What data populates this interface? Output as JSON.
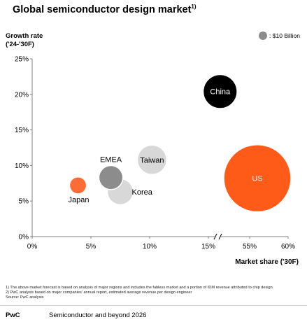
{
  "header": {
    "title": "Global semiconductor design market",
    "title_sup": "1)"
  },
  "legend": {
    "label": ": $10 Billion",
    "color": "#8c8c8c"
  },
  "chart_data": {
    "type": "scatter",
    "title": "Global semiconductor design market",
    "ylabel": "Growth rate ('24-'30F)",
    "xlabel": "Market share ('30F)",
    "ylim": [
      0,
      25
    ],
    "y_ticks": [
      "0%",
      "5%",
      "10%",
      "15%",
      "20%",
      "25%"
    ],
    "y_tick_values": [
      0,
      5,
      10,
      15,
      20,
      25
    ],
    "x_segments": [
      {
        "range": [
          0,
          15
        ],
        "ticks": [
          "0%",
          "5%",
          "10%",
          "15%"
        ],
        "tick_values": [
          0,
          5,
          10,
          15
        ]
      },
      {
        "range": [
          50,
          60
        ],
        "ticks": [
          "55%",
          "60%"
        ],
        "tick_values": [
          55,
          60
        ]
      }
    ],
    "axis_break": true,
    "grid": false,
    "bubble_size_note": "$10 Billion",
    "points": [
      {
        "label": "Japan",
        "x": 3.9,
        "y": 7.2,
        "size": 3,
        "color": "#fd6c35",
        "label_color": "#000000",
        "label_pos": "below"
      },
      {
        "label": "EMEA",
        "x": 6.7,
        "y": 8.3,
        "size": 6,
        "color": "#8c8c8c",
        "label_color": "#000000",
        "label_pos": "above"
      },
      {
        "label": "Korea",
        "x": 7.5,
        "y": 6.3,
        "size": 7,
        "color": "#d8d8d8",
        "label_color": "#000000",
        "label_pos": "right"
      },
      {
        "label": "Taiwan",
        "x": 10.2,
        "y": 10.8,
        "size": 9,
        "color": "#d8d8d8",
        "label_color": "#000000",
        "label_pos": "center"
      },
      {
        "label": "China",
        "x": 16.0,
        "y": 20.4,
        "size": 12,
        "color": "#000000",
        "label_color": "#ffffff",
        "label_pos": "center"
      },
      {
        "label": "US",
        "x": 56.0,
        "y": 8.2,
        "size": 47,
        "color": "#fe5b19",
        "label_color": "#ffffff",
        "label_pos": "center"
      }
    ]
  },
  "footnotes": [
    "1) The above market forecast is based on analysis of major regions and includes the fabless market and a portion of IDM revenue attributed to chip design",
    "2) PwC analysis based on major companies' annual report, estimated average revenue per design engineer",
    "Source: PwC analysis"
  ],
  "footer": {
    "brand": "PwC",
    "doc_title": "Semiconductor and beyond 2026"
  }
}
